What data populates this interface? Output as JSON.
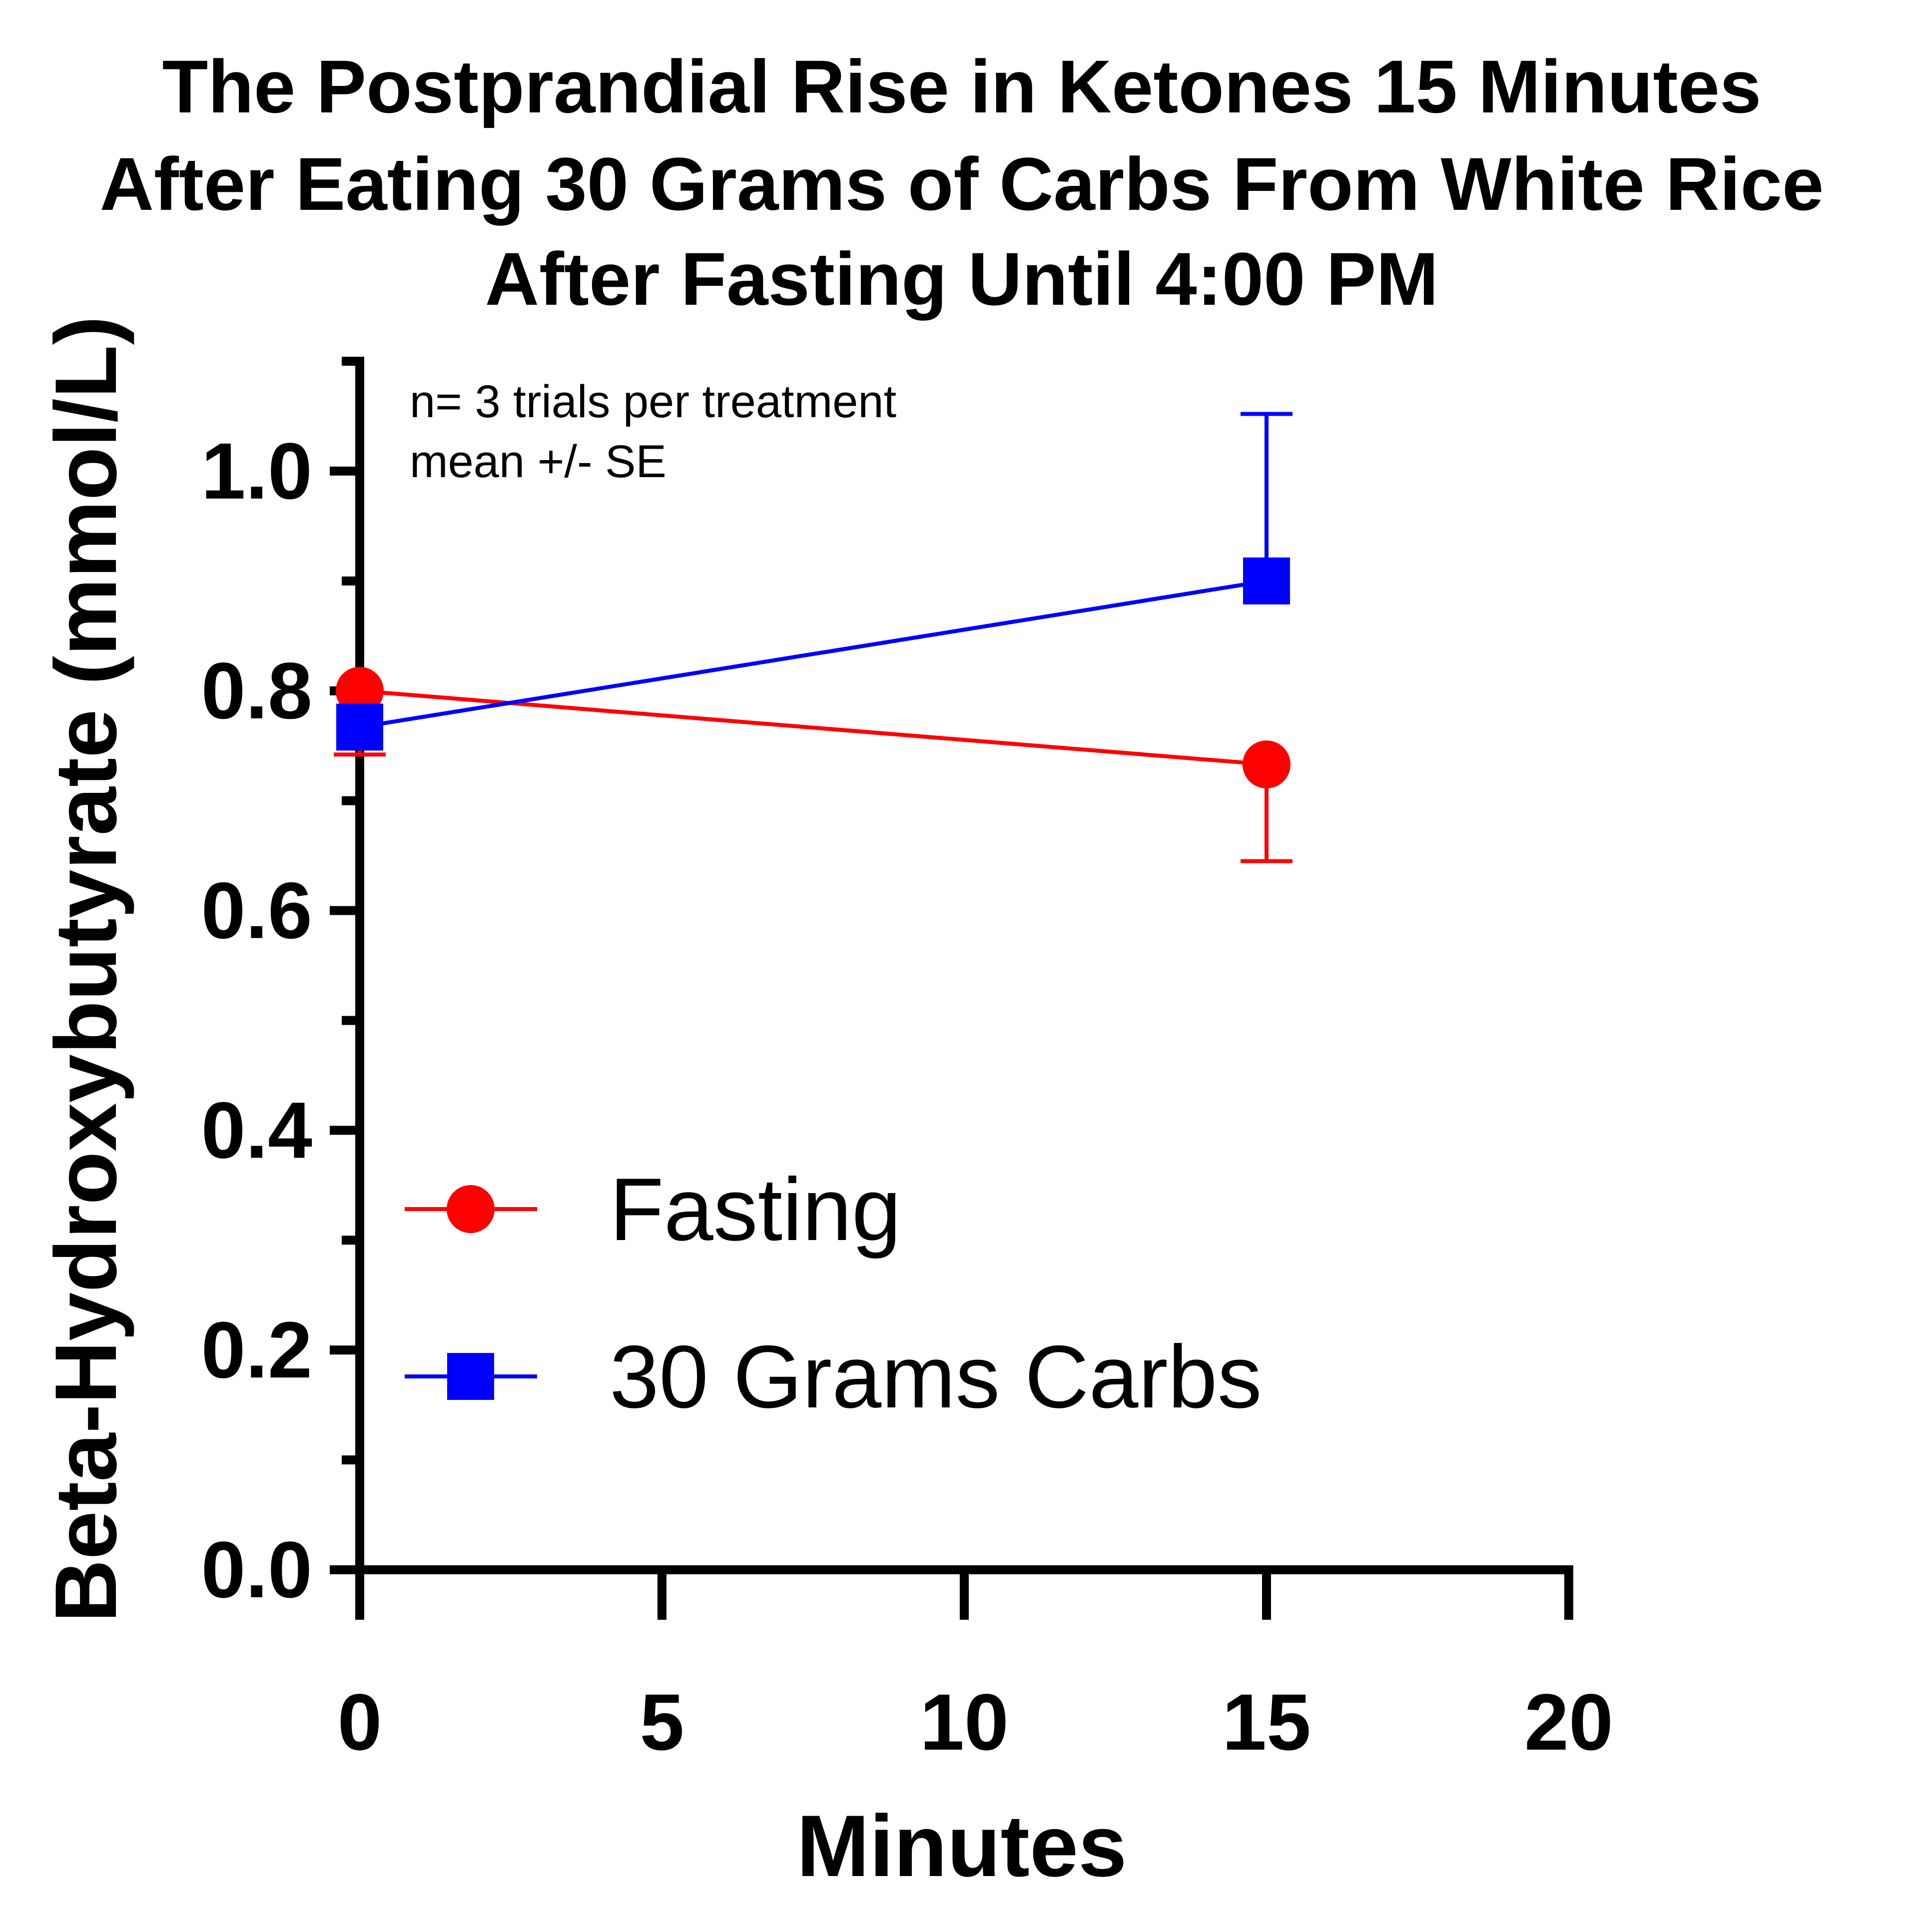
{
  "chart_data": {
    "type": "line",
    "title_lines": [
      "The Postprandial Rise in Ketones 15 Minutes",
      "After Eating 30 Grams of Carbs From White Rice",
      "After Fasting Until 4:00 PM"
    ],
    "xlabel": "Minutes",
    "ylabel": "Beta-Hydroxybutyrate (mmol/L)",
    "xlim": [
      0,
      20
    ],
    "ylim": [
      0,
      1.1
    ],
    "x_ticks": [
      0,
      5,
      10,
      15,
      20
    ],
    "x_tick_labels": [
      "0",
      "5",
      "10",
      "15",
      "20"
    ],
    "y_major_ticks": [
      0,
      0.2,
      0.4,
      0.6,
      0.8,
      1.0
    ],
    "y_tick_labels": [
      "0.0",
      "0.2",
      "0.4",
      "0.6",
      "0.8",
      "1.0"
    ],
    "y_minor_ticks": [
      0.1,
      0.3,
      0.5,
      0.7,
      0.9,
      1.1
    ],
    "annotation": [
      "n= 3 trials per treatment",
      "mean +/- SE"
    ],
    "legend_position": "lower-left",
    "grid": false,
    "x": [
      0,
      15
    ],
    "series": [
      {
        "name": "Fasting",
        "marker": "circle",
        "color": "#ff0000",
        "values": [
          0.8,
          0.733
        ],
        "error_down": [
          0.058,
          0.088
        ],
        "error_up": [
          0,
          0
        ]
      },
      {
        "name": "30 Grams Carbs",
        "marker": "square",
        "color": "#0000ff",
        "values": [
          0.767,
          0.9
        ],
        "error_down": [
          0,
          0
        ],
        "error_up": [
          0,
          0.152
        ]
      }
    ]
  }
}
